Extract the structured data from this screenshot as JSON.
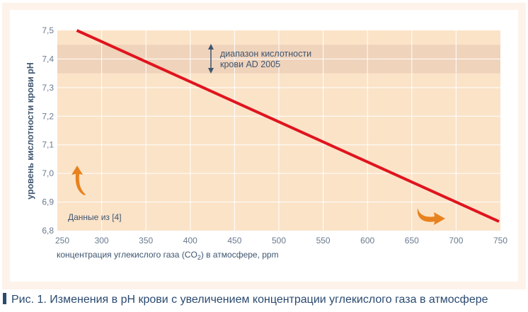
{
  "caption": "Рис. 1. Изменения в pH крови с увеличением концентрации углекислого газа в атмосфере",
  "colors": {
    "line": "#e0141e",
    "plot_bg": "#fbe3c8",
    "band": "#efd3bb",
    "arrow": "#e8821e",
    "text": "#3f5570",
    "caption": "#2b4a6f"
  },
  "chart_data": {
    "type": "line",
    "title": "",
    "xlabel_prefix": "концентрация углекислого газа (CO",
    "xlabel_sub": "2",
    "xlabel_suffix": ") в атмосфере, ppm",
    "ylabel": "уровень кислотности крови pH",
    "xlim": [
      250,
      750
    ],
    "ylim": [
      6.8,
      7.5
    ],
    "x_ticks": [
      "250",
      "300",
      "350",
      "400",
      "450",
      "500",
      "550",
      "600",
      "650",
      "700",
      "750"
    ],
    "y_ticks": [
      "6,8",
      "6,9",
      "7,0",
      "7,1",
      "7,2",
      "7,3",
      "7,4",
      "7,5"
    ],
    "grid": true,
    "series": [
      {
        "x": [
          272,
          753
        ],
        "y": [
          7.5,
          6.83
        ]
      }
    ],
    "band": {
      "y": [
        7.35,
        7.45
      ],
      "label_line1": "диапазон кислотности",
      "label_line2": "крови AD 2005"
    },
    "annotation": "Данные из [4]"
  }
}
